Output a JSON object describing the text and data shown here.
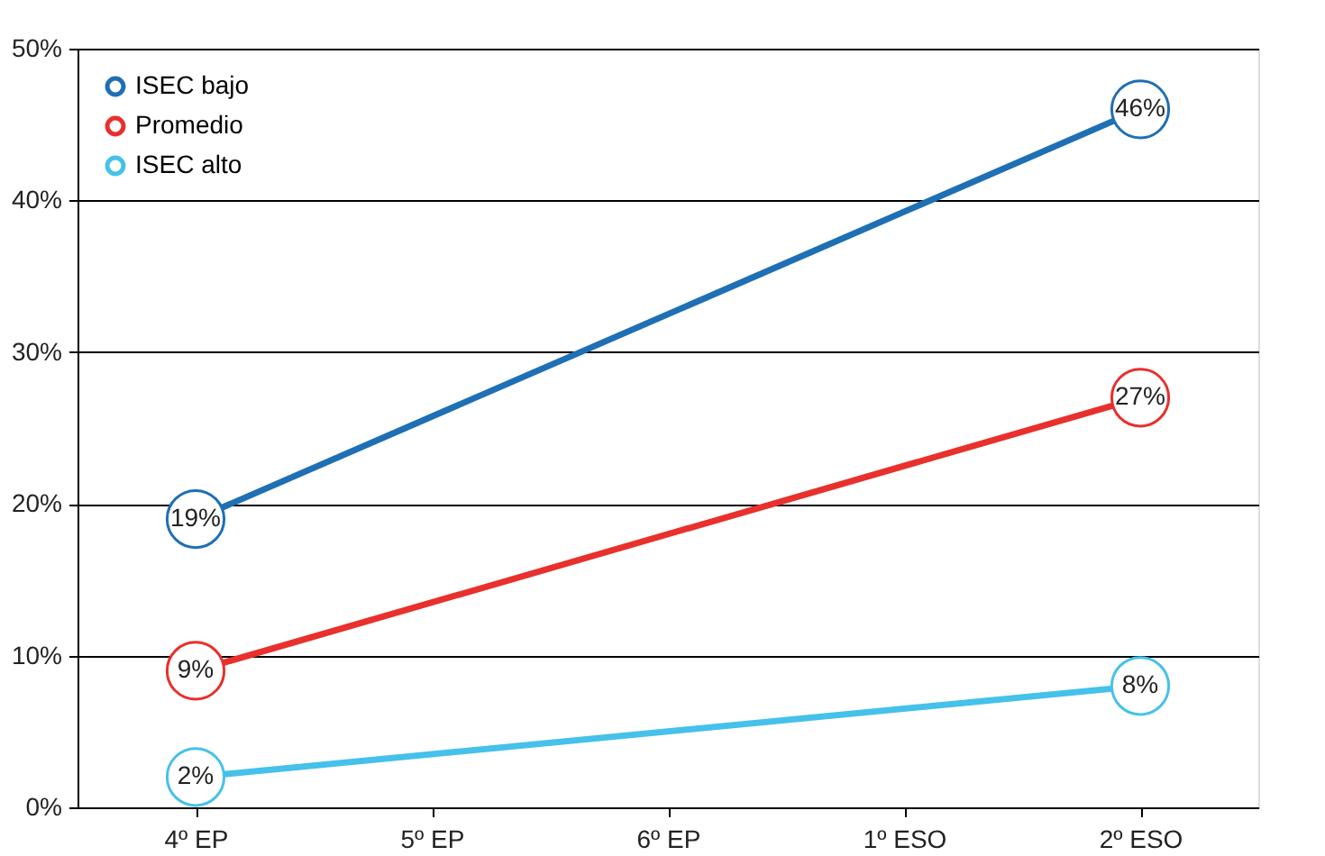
{
  "chart_data": {
    "type": "line",
    "categories": [
      "4º EP",
      "5º EP",
      "6º EP",
      "1º ESO",
      "2º ESO"
    ],
    "series": [
      {
        "name": "ISEC bajo",
        "color": "#1f6fb4",
        "values": [
          19,
          null,
          null,
          null,
          46
        ],
        "value_labels": [
          "19%",
          null,
          null,
          null,
          "46%"
        ]
      },
      {
        "name": "Promedio",
        "color": "#e8302c",
        "values": [
          9,
          null,
          null,
          null,
          27
        ],
        "value_labels": [
          "9%",
          null,
          null,
          null,
          "27%"
        ]
      },
      {
        "name": "ISEC alto",
        "color": "#45c1ea",
        "values": [
          2,
          null,
          null,
          null,
          8
        ],
        "value_labels": [
          "2%",
          null,
          null,
          null,
          "8%"
        ]
      }
    ],
    "ylim": [
      0,
      50
    ],
    "yticks": [
      {
        "value": 0,
        "label": "0%"
      },
      {
        "value": 10,
        "label": "10%"
      },
      {
        "value": 20,
        "label": "20%"
      },
      {
        "value": 30,
        "label": "30%"
      },
      {
        "value": 40,
        "label": "40%"
      },
      {
        "value": 50,
        "label": "50%"
      }
    ],
    "grid": "y",
    "legend": "top left",
    "marker": "circle",
    "line_style": "solid"
  }
}
